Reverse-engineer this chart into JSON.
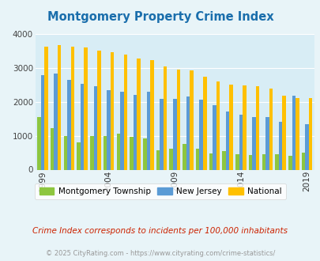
{
  "title": "Montgomery Property Crime Index",
  "title_color": "#1a6eac",
  "years": [
    1999,
    2000,
    2001,
    2002,
    2003,
    2004,
    2005,
    2006,
    2007,
    2008,
    2009,
    2010,
    2011,
    2012,
    2013,
    2014,
    2015,
    2016,
    2017,
    2018,
    2019
  ],
  "montgomery": [
    1550,
    1220,
    980,
    810,
    1000,
    1000,
    1070,
    960,
    920,
    580,
    620,
    760,
    620,
    480,
    540,
    450,
    440,
    450,
    450,
    410,
    490
  ],
  "new_jersey": [
    2780,
    2840,
    2650,
    2540,
    2450,
    2350,
    2290,
    2210,
    2300,
    2090,
    2080,
    2150,
    2060,
    1910,
    1720,
    1630,
    1550,
    1540,
    1410,
    2190,
    1350
  ],
  "national": [
    3620,
    3660,
    3620,
    3600,
    3500,
    3450,
    3380,
    3280,
    3220,
    3050,
    2960,
    2920,
    2750,
    2600,
    2510,
    2490,
    2450,
    2400,
    2190,
    2100,
    2100
  ],
  "bar_colors": {
    "montgomery": "#8dc63f",
    "new_jersey": "#5b9bd5",
    "national": "#ffc000"
  },
  "bg_color": "#e8f4f8",
  "plot_bg": "#d8edf5",
  "ylim": [
    0,
    4000
  ],
  "yticks": [
    0,
    1000,
    2000,
    3000,
    4000
  ],
  "tick_years": [
    1999,
    2004,
    2009,
    2014,
    2019
  ],
  "grid_color": "#ffffff",
  "subtitle": "Crime Index corresponds to incidents per 100,000 inhabitants",
  "subtitle_color": "#cc2200",
  "footer": "© 2025 CityRating.com - https://www.cityrating.com/crime-statistics/",
  "footer_color": "#999999",
  "legend_labels": [
    "Montgomery Township",
    "New Jersey",
    "National"
  ]
}
